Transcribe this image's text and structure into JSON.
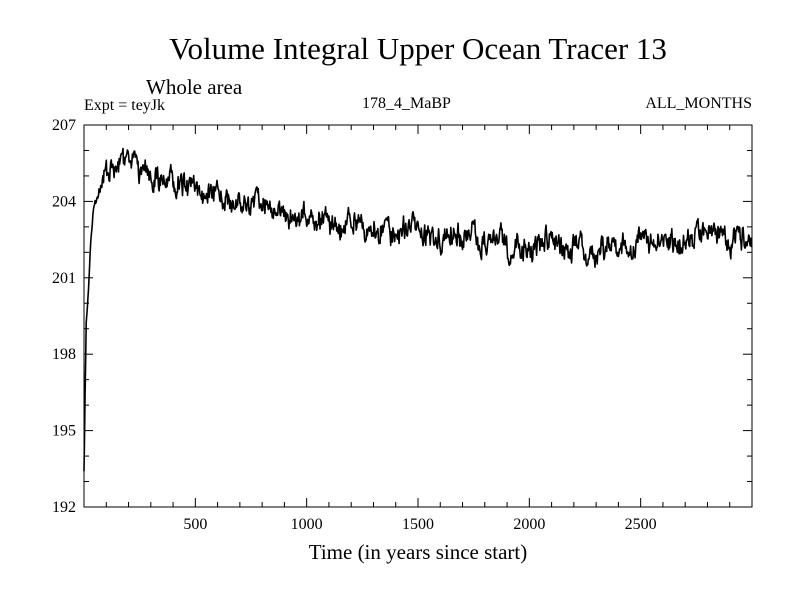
{
  "chart_data": {
    "type": "line",
    "title": "Volume Integral Upper Ocean Tracer 13",
    "subtitle": "Whole area",
    "annotations": {
      "experiment": "Expt = teyJk",
      "period": "178_4_MaBP",
      "season": "ALL_MONTHS"
    },
    "xlabel": "Time (in years since start)",
    "ylabel": "",
    "xlim": [
      0,
      3000
    ],
    "ylim": [
      192,
      207
    ],
    "x_ticks": [
      500,
      1000,
      1500,
      2000,
      2500
    ],
    "y_ticks": [
      192,
      195,
      198,
      201,
      204,
      207
    ],
    "grid": false,
    "series": [
      {
        "name": "Tracer 13",
        "x": [
          0,
          5,
          10,
          15,
          20,
          30,
          40,
          50,
          60,
          70,
          80,
          90,
          100,
          120,
          140,
          160,
          180,
          200,
          220,
          240,
          260,
          280,
          300,
          350,
          400,
          450,
          500,
          550,
          600,
          650,
          700,
          750,
          800,
          900,
          1000,
          1100,
          1200,
          1300,
          1400,
          1500,
          1600,
          1700,
          1800,
          1900,
          2000,
          2100,
          2200,
          2300,
          2400,
          2500,
          2600,
          2700,
          2800,
          2900,
          3000
        ],
        "values": [
          193.4,
          196.5,
          199.2,
          199.8,
          200.5,
          202.2,
          203.6,
          204.2,
          204.5,
          204.6,
          204.7,
          204.8,
          204.9,
          205.0,
          205.1,
          205.2,
          205.3,
          205.4,
          205.4,
          205.3,
          205.2,
          205.1,
          205.0,
          204.9,
          204.8,
          204.6,
          204.5,
          204.3,
          204.2,
          204.0,
          203.9,
          203.8,
          203.7,
          203.5,
          203.3,
          203.2,
          203.1,
          203.0,
          202.9,
          202.8,
          202.7,
          202.6,
          202.5,
          202.4,
          202.3,
          202.2,
          202.1,
          202.0,
          202.0,
          202.2,
          202.4,
          202.5,
          202.6,
          202.7,
          202.8
        ]
      }
    ]
  }
}
